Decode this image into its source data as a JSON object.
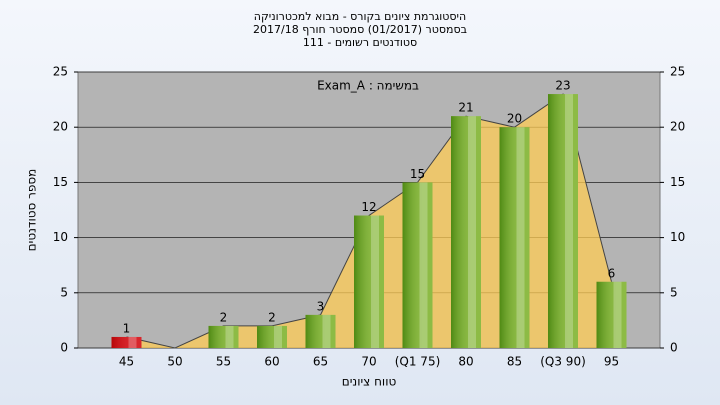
{
  "chart_data": {
    "type": "bar",
    "title": [
      "היסטוגרמת ציונים בקורס - מבוא למכטרוניקה",
      "בסמסטר  (01/2017)  סמסטר חורף 2017/18",
      "סטודנטים רשומים - 111"
    ],
    "annotation": "Exam_A : במשימה",
    "x_label": "טווח ציונים",
    "y_label": "מספר סטודנטים",
    "categories": [
      "45",
      "50",
      "55",
      "60",
      "65",
      "70",
      "(Q1 75)",
      "80",
      "85",
      "(Q3 90)",
      "95"
    ],
    "values": [
      1,
      0,
      2,
      2,
      3,
      12,
      15,
      21,
      20,
      23,
      6
    ],
    "colors": [
      "#d8262c",
      "#8dbb45",
      "#8dbb45",
      "#8dbb45",
      "#8dbb45",
      "#8dbb45",
      "#8dbb45",
      "#8dbb45",
      "#8dbb45",
      "#8dbb45",
      "#8dbb45"
    ],
    "area_color": "#ffcc55",
    "ylim": [
      0,
      25
    ],
    "yticks": [
      0,
      5,
      10,
      15,
      20,
      25
    ],
    "y2lim": [
      0,
      25
    ],
    "y2ticks": [
      0,
      5,
      10,
      15,
      20,
      25
    ],
    "grid": true
  }
}
